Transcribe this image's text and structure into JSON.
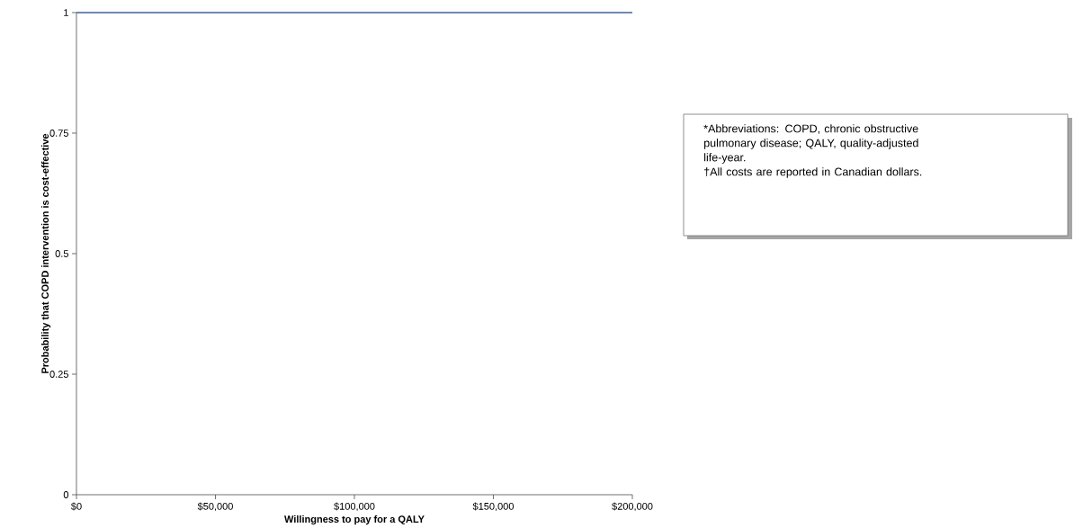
{
  "chart_data": {
    "type": "line",
    "xlabel": "Willingness to pay for a QALY",
    "ylabel": "Probability that COPD intervention is cost-effective",
    "x": [
      0,
      200000
    ],
    "series": [
      {
        "color": "#41619e",
        "values": [
          1,
          1
        ]
      }
    ],
    "xlim": [
      0,
      200000
    ],
    "ylim": [
      0,
      1
    ],
    "xticks": [
      {
        "value": 0,
        "label": "$0"
      },
      {
        "value": 50000,
        "label": "$50,000"
      },
      {
        "value": 100000,
        "label": "$100,000"
      },
      {
        "value": 150000,
        "label": "$150,000"
      },
      {
        "value": 200000,
        "label": "$200,000"
      }
    ],
    "yticks": [
      0,
      0.25,
      0.5,
      0.75,
      1
    ],
    "grid": false,
    "marker": "none",
    "line_style": "solid",
    "annotations": [
      "*Abbreviations: COPD, chronic obstructive pulmonary disease; QALY, quality-adjusted life-year.",
      "†All costs are reported in Canadian dollars."
    ]
  }
}
